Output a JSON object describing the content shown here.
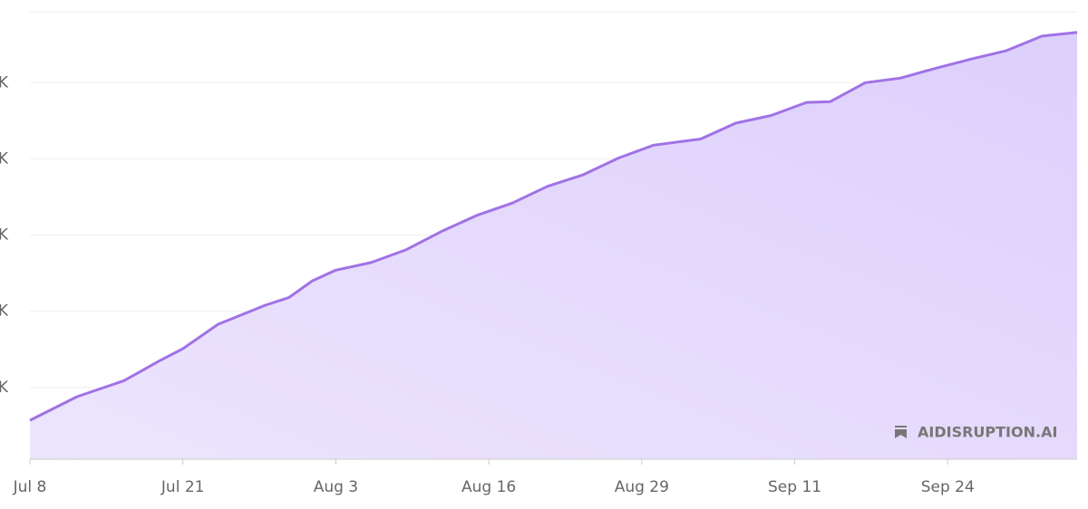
{
  "chart_data": {
    "type": "area",
    "x": [
      "Jul 8",
      "Jul 12",
      "Jul 16",
      "Jul 19",
      "Jul 21",
      "Jul 24",
      "Jul 28",
      "Jul 30",
      "Aug 1",
      "Aug 3",
      "Aug 6",
      "Aug 9",
      "Aug 12",
      "Aug 15",
      "Aug 18",
      "Aug 21",
      "Aug 24",
      "Aug 27",
      "Aug 30",
      "Sep 3",
      "Sep 6",
      "Sep 9",
      "Sep 12",
      "Sep 14",
      "Sep 17",
      "Sep 20",
      "Sep 23",
      "Sep 26",
      "Sep 29",
      "Oct 2",
      "Oct 5"
    ],
    "values": [
      0.57,
      0.88,
      1.09,
      1.35,
      1.51,
      1.83,
      2.08,
      2.18,
      2.4,
      2.54,
      2.64,
      2.81,
      3.05,
      3.26,
      3.42,
      3.64,
      3.79,
      4.01,
      4.18,
      4.26,
      4.47,
      4.57,
      4.74,
      4.75,
      5.0,
      5.06,
      5.19,
      5.31,
      5.42,
      5.61,
      5.66
    ],
    "color": "#a072e6",
    "fill_color": "#e4d8fd",
    "xlim": [
      "Jul 8",
      "Oct 5"
    ],
    "xticks": [
      "Jul 8",
      "Jul 21",
      "Aug 3",
      "Aug 16",
      "Aug 29",
      "Sep 11",
      "Sep 24"
    ],
    "ylim": [
      0.06,
      5.93
    ],
    "yticks": [
      {
        "value": 1,
        "label": "K"
      },
      {
        "value": 2,
        "label": "K"
      },
      {
        "value": 3,
        "label": "K"
      },
      {
        "value": 4,
        "label": "K"
      },
      {
        "value": 5,
        "label": "K"
      }
    ],
    "grid": true,
    "watermark": "AIDISRUPTION.AI"
  }
}
